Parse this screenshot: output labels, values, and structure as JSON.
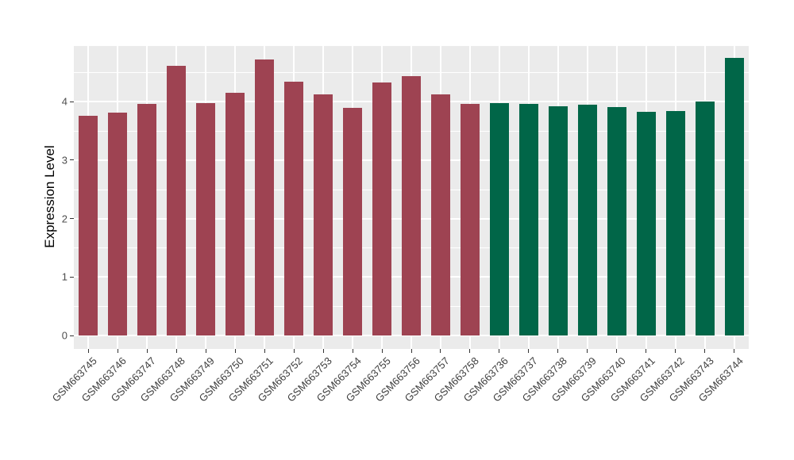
{
  "chart_data": {
    "type": "bar",
    "title": "",
    "xlabel": "",
    "ylabel": "Expression Level",
    "ylim": [
      0,
      4.95
    ],
    "yticks": [
      0,
      1,
      2,
      3,
      4
    ],
    "yticks_minor": [
      0.5,
      1.5,
      2.5,
      3.5,
      4.5
    ],
    "grid": "major+minor horizontal, major vertical at categories",
    "legend_position": "none",
    "panel_background": "#EBEBEB",
    "gridline_color": "#FFFFFF",
    "categories": [
      "GSM663745",
      "GSM663746",
      "GSM663747",
      "GSM663748",
      "GSM663749",
      "GSM663750",
      "GSM663751",
      "GSM663752",
      "GSM663753",
      "GSM663754",
      "GSM663755",
      "GSM663756",
      "GSM663757",
      "GSM663758",
      "GSM663736",
      "GSM663737",
      "GSM663738",
      "GSM663739",
      "GSM663740",
      "GSM663741",
      "GSM663742",
      "GSM663743",
      "GSM663744"
    ],
    "values": [
      3.76,
      3.82,
      3.96,
      4.61,
      3.98,
      4.16,
      4.73,
      4.35,
      4.12,
      3.89,
      4.33,
      4.44,
      4.12,
      3.96,
      3.98,
      3.97,
      3.92,
      3.95,
      3.91,
      3.83,
      3.84,
      4.01,
      4.75
    ],
    "series": [
      {
        "name": "GSM663745-GSM663758",
        "color": "#9E4352",
        "count": 14
      },
      {
        "name": "GSM663736-GSM663744",
        "color": "#016648",
        "count": 9
      }
    ]
  },
  "axis_style": {
    "tick_mark_color": "#333333",
    "tick_label_color": "#4D4D4D",
    "x_label_color": "#404040",
    "title_color": "#000000"
  }
}
